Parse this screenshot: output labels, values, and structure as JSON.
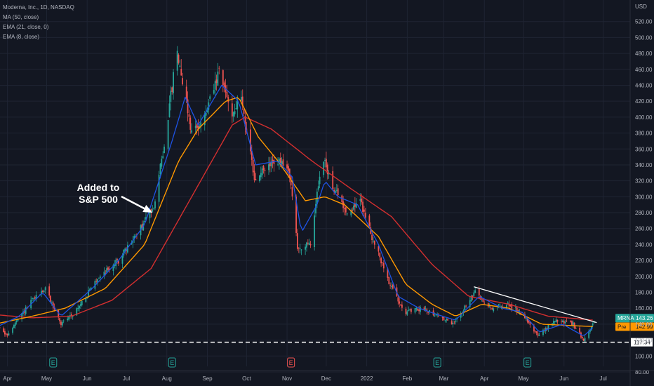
{
  "header": {
    "title": "Moderna, Inc., 1D, NASDAQ",
    "indicators": [
      "MA (50, close)",
      "EMA (21, close, 0)",
      "EMA (8, close)"
    ]
  },
  "annotation": {
    "line1": "Added to",
    "line2": "S&P 500"
  },
  "colors": {
    "background": "#131722",
    "grid": "#1f2433",
    "up": "#26a69a",
    "down": "#ef5350",
    "ma50": "#d32f2f",
    "ema21": "#ff9800",
    "ema8": "#1e53e5",
    "trendline": "#ffffff",
    "tag_mrna": "#26a69a",
    "tag_pre": "#ff9800"
  },
  "chart_data": {
    "type": "candlestick",
    "currency_label": "USD",
    "ylim": [
      80,
      540
    ],
    "y_ticks": [
      80,
      100,
      120,
      140,
      160,
      180,
      200,
      220,
      240,
      260,
      280,
      300,
      320,
      340,
      360,
      380,
      400,
      420,
      440,
      460,
      480,
      500,
      520
    ],
    "x_ticks": [
      {
        "label": "Apr",
        "date": "2021-04-01"
      },
      {
        "label": "May",
        "date": "2021-05-01"
      },
      {
        "label": "Jun",
        "date": "2021-06-01"
      },
      {
        "label": "Jul",
        "date": "2021-07-01"
      },
      {
        "label": "Aug",
        "date": "2021-08-01"
      },
      {
        "label": "Sep",
        "date": "2021-09-01"
      },
      {
        "label": "Oct",
        "date": "2021-10-01"
      },
      {
        "label": "Nov",
        "date": "2021-11-01"
      },
      {
        "label": "Dec",
        "date": "2021-12-01"
      },
      {
        "label": "2022",
        "date": "2022-01-01"
      },
      {
        "label": "Feb",
        "date": "2022-02-01"
      },
      {
        "label": "Mar",
        "date": "2022-03-01"
      },
      {
        "label": "Apr",
        "date": "2022-04-01"
      },
      {
        "label": "May",
        "date": "2022-05-01"
      },
      {
        "label": "Jun",
        "date": "2022-06-01"
      },
      {
        "label": "Jul",
        "date": "2022-07-01"
      }
    ],
    "date_range": [
      "2021-03-22",
      "2022-07-20"
    ],
    "price_anchors": [
      [
        "2021-03-22",
        145
      ],
      [
        "2021-03-31",
        125
      ],
      [
        "2021-04-20",
        170
      ],
      [
        "2021-04-30",
        185
      ],
      [
        "2021-05-12",
        140
      ],
      [
        "2021-05-25",
        160
      ],
      [
        "2021-06-10",
        200
      ],
      [
        "2021-06-25",
        220
      ],
      [
        "2021-07-12",
        260
      ],
      [
        "2021-07-22",
        290
      ],
      [
        "2021-07-29",
        355
      ],
      [
        "2021-08-09",
        485
      ],
      [
        "2021-08-20",
        380
      ],
      [
        "2021-08-30",
        400
      ],
      [
        "2021-09-10",
        455
      ],
      [
        "2021-09-20",
        405
      ],
      [
        "2021-09-27",
        425
      ],
      [
        "2021-10-07",
        320
      ],
      [
        "2021-10-15",
        335
      ],
      [
        "2021-10-25",
        345
      ],
      [
        "2021-11-03",
        330
      ],
      [
        "2021-11-09",
        235
      ],
      [
        "2021-11-19",
        240
      ],
      [
        "2021-11-26",
        330
      ],
      [
        "2021-11-29",
        345
      ],
      [
        "2021-12-07",
        310
      ],
      [
        "2021-12-17",
        280
      ],
      [
        "2021-12-27",
        295
      ],
      [
        "2022-01-07",
        240
      ],
      [
        "2022-01-20",
        185
      ],
      [
        "2022-01-31",
        155
      ],
      [
        "2022-02-14",
        160
      ],
      [
        "2022-02-25",
        150
      ],
      [
        "2022-03-08",
        140
      ],
      [
        "2022-03-25",
        180
      ],
      [
        "2022-04-05",
        160
      ],
      [
        "2022-04-20",
        165
      ],
      [
        "2022-05-02",
        150
      ],
      [
        "2022-05-12",
        125
      ],
      [
        "2022-05-25",
        145
      ],
      [
        "2022-06-08",
        140
      ],
      [
        "2022-06-16",
        120
      ],
      [
        "2022-06-24",
        143.26
      ]
    ],
    "ma50_anchors": [
      [
        "2021-03-22",
        152
      ],
      [
        "2021-04-20",
        148
      ],
      [
        "2021-05-20",
        150
      ],
      [
        "2021-06-20",
        170
      ],
      [
        "2021-07-20",
        210
      ],
      [
        "2021-08-20",
        300
      ],
      [
        "2021-09-20",
        390
      ],
      [
        "2021-09-30",
        400
      ],
      [
        "2021-10-20",
        385
      ],
      [
        "2021-11-20",
        345
      ],
      [
        "2021-12-20",
        310
      ],
      [
        "2022-01-20",
        275
      ],
      [
        "2022-02-20",
        215
      ],
      [
        "2022-03-20",
        175
      ],
      [
        "2022-04-20",
        165
      ],
      [
        "2022-05-20",
        150
      ],
      [
        "2022-06-24",
        145
      ]
    ],
    "ema21_anchors": [
      [
        "2021-03-22",
        140
      ],
      [
        "2021-04-20",
        150
      ],
      [
        "2021-05-15",
        160
      ],
      [
        "2021-06-15",
        185
      ],
      [
        "2021-07-15",
        240
      ],
      [
        "2021-08-10",
        345
      ],
      [
        "2021-08-25",
        385
      ],
      [
        "2021-09-15",
        420
      ],
      [
        "2021-09-25",
        425
      ],
      [
        "2021-10-10",
        375
      ],
      [
        "2021-10-25",
        345
      ],
      [
        "2021-11-15",
        295
      ],
      [
        "2021-11-30",
        300
      ],
      [
        "2021-12-15",
        290
      ],
      [
        "2022-01-10",
        250
      ],
      [
        "2022-01-31",
        190
      ],
      [
        "2022-02-20",
        165
      ],
      [
        "2022-03-10",
        150
      ],
      [
        "2022-03-30",
        165
      ],
      [
        "2022-04-20",
        160
      ],
      [
        "2022-05-15",
        140
      ],
      [
        "2022-06-10",
        138
      ],
      [
        "2022-06-24",
        137
      ]
    ],
    "ema8_anchors": [
      [
        "2021-03-22",
        135
      ],
      [
        "2021-04-10",
        150
      ],
      [
        "2021-04-28",
        180
      ],
      [
        "2021-05-12",
        150
      ],
      [
        "2021-06-05",
        185
      ],
      [
        "2021-06-25",
        220
      ],
      [
        "2021-07-15",
        265
      ],
      [
        "2021-08-05",
        370
      ],
      [
        "2021-08-15",
        425
      ],
      [
        "2021-08-25",
        390
      ],
      [
        "2021-09-12",
        440
      ],
      [
        "2021-09-25",
        420
      ],
      [
        "2021-10-08",
        340
      ],
      [
        "2021-10-25",
        345
      ],
      [
        "2021-11-05",
        325
      ],
      [
        "2021-11-12",
        255
      ],
      [
        "2021-11-24",
        290
      ],
      [
        "2021-11-30",
        320
      ],
      [
        "2021-12-10",
        300
      ],
      [
        "2021-12-25",
        290
      ],
      [
        "2022-01-10",
        240
      ],
      [
        "2022-01-25",
        175
      ],
      [
        "2022-02-10",
        160
      ],
      [
        "2022-02-28",
        150
      ],
      [
        "2022-03-10",
        145
      ],
      [
        "2022-03-28",
        175
      ],
      [
        "2022-04-15",
        160
      ],
      [
        "2022-04-30",
        155
      ],
      [
        "2022-05-13",
        130
      ],
      [
        "2022-05-31",
        140
      ],
      [
        "2022-06-16",
        125
      ],
      [
        "2022-06-24",
        137
      ]
    ],
    "earnings_markers": [
      {
        "date": "2021-05-06",
        "label": "E",
        "kind": "up"
      },
      {
        "date": "2021-08-05",
        "label": "E",
        "kind": "up"
      },
      {
        "date": "2021-11-04",
        "label": "E",
        "kind": "down"
      },
      {
        "date": "2022-02-24",
        "label": "E",
        "kind": "up"
      },
      {
        "date": "2022-05-04",
        "label": "E",
        "kind": "up"
      }
    ],
    "trendline": {
      "from": [
        "2022-03-24",
        187
      ],
      "to": [
        "2022-06-26",
        142
      ]
    },
    "support_level": {
      "value": 117.34,
      "label": "117.34"
    },
    "price_tags": [
      {
        "name": "MRNA",
        "value": 143.26,
        "label": "143.26"
      },
      {
        "name": "Pre",
        "value": 142.99,
        "label": "142.99"
      }
    ],
    "arrow_target": [
      "2021-07-21",
      280
    ]
  }
}
